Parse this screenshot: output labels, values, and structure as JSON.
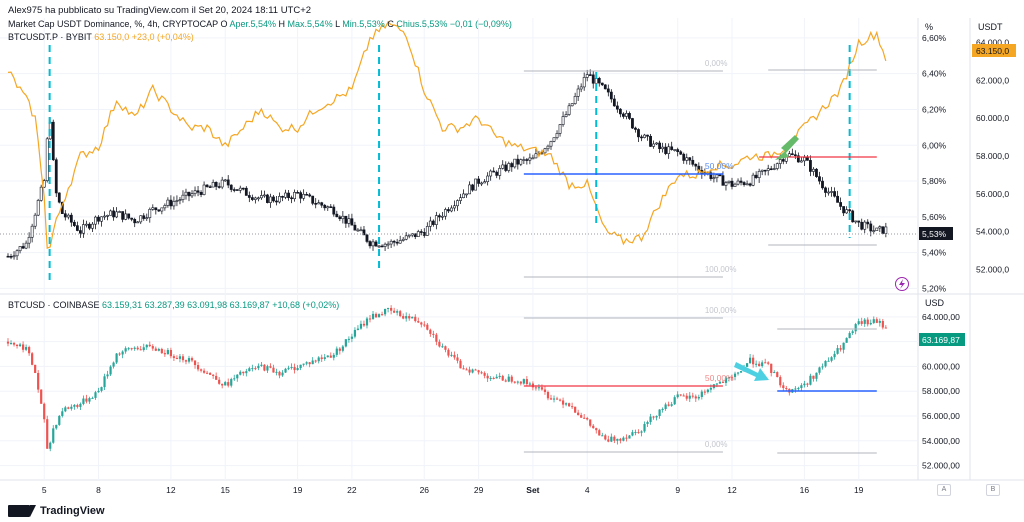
{
  "publisher": "Alex975 ha pubblicato su TradingView.com il Set 20, 2024 18:11 UTC+2",
  "brand": "TradingView",
  "colors": {
    "dominance_line": "#f5a623",
    "up_candle": "#26a69a",
    "down_candle": "#ef5350",
    "dom_candle_up": "#ffffff",
    "dom_candle_down": "#131722",
    "grid": "#f0f3fa",
    "fib": "#b2b5be",
    "blue_line": "#2962ff",
    "red_line": "#f23645",
    "cyan_dash": "#00bcd4",
    "arrow_green": "#66bb6a",
    "arrow_cyan": "#4dd0e1"
  },
  "top_panel": {
    "title": "Market Cap USDT Dominance, %, 4h, CRYPTOCAP",
    "ohlc": {
      "o_label": "O",
      "o": "Aper.5,54%",
      "h_label": "H",
      "h": "Max.5,54%",
      "l_label": "L",
      "l": "Min.5,53%",
      "c_label": "C",
      "c": "Chius.5,53%",
      "chg": "−0,01 (−0,09%)"
    },
    "series2_name": "BTCUSDT.P · BYBIT",
    "series2_value": "63.150,0",
    "series2_change": "+23,0 (+0,04%)",
    "left_axis_unit": "%",
    "right_axis_unit": "USDT",
    "current_label": "5,53%",
    "orange_label": "63.150,0",
    "fib_labels": [
      "0,00%",
      "50,00%",
      "100,00%"
    ]
  },
  "bottom_panel": {
    "title": "BTCUSD · COINBASE",
    "ohlc": "63.159,31  63.287,39  63.091,98  63.169,87  +10,68 (+0,02%)",
    "axis_unit": "USD",
    "current_label": "63.169,87",
    "fib_labels": [
      "100,00%",
      "50,00%",
      "0,00%"
    ]
  },
  "x_axis": {
    "labels": [
      "5",
      "8",
      "12",
      "15",
      "19",
      "22",
      "26",
      "29",
      "Set",
      "4",
      "9",
      "12",
      "16",
      "19"
    ],
    "buttons": [
      "A",
      "B"
    ]
  },
  "chart_data": [
    {
      "type": "line",
      "title": "Market Cap USDT Dominance, %, 4h, CRYPTOCAP",
      "note": "candles + BTCUSDT.P overlay",
      "ylim_left": [
        5.2,
        6.7
      ],
      "yticks_left": [
        "6,60%",
        "6,40%",
        "6,20%",
        "6,00%",
        "5,80%",
        "5,60%",
        "5,40%",
        "5,20%"
      ],
      "yticks_left_values": [
        6.6,
        6.4,
        6.2,
        6.0,
        5.8,
        5.6,
        5.4,
        5.2
      ],
      "ylim_right": [
        51000,
        65000
      ],
      "yticks_right": [
        "64.000,0",
        "62.000,0",
        "60.000,0",
        "58.000,0",
        "56.000,0",
        "54.000,0",
        "52.000,0"
      ],
      "yticks_right_values": [
        64000,
        62000,
        60000,
        58000,
        56000,
        54000,
        52000
      ],
      "x_days": [
        3,
        5,
        8,
        12,
        15,
        19,
        22,
        26,
        29,
        32,
        35,
        40,
        43,
        47,
        50,
        52
      ],
      "dominance_path": [
        [
          3,
          5.38
        ],
        [
          4,
          5.45
        ],
        [
          5,
          5.8
        ],
        [
          5.3,
          6.2
        ],
        [
          5.6,
          5.75
        ],
        [
          6,
          5.62
        ],
        [
          7,
          5.52
        ],
        [
          8,
          5.6
        ],
        [
          9,
          5.62
        ],
        [
          10,
          5.58
        ],
        [
          11,
          5.64
        ],
        [
          12,
          5.68
        ],
        [
          13,
          5.72
        ],
        [
          14,
          5.76
        ],
        [
          15,
          5.79
        ],
        [
          16,
          5.74
        ],
        [
          17,
          5.7
        ],
        [
          18,
          5.7
        ],
        [
          19,
          5.73
        ],
        [
          20,
          5.68
        ],
        [
          21,
          5.64
        ],
        [
          22,
          5.55
        ],
        [
          23,
          5.46
        ],
        [
          24,
          5.45
        ],
        [
          25,
          5.48
        ],
        [
          26,
          5.52
        ],
        [
          27,
          5.62
        ],
        [
          28,
          5.72
        ],
        [
          29,
          5.8
        ],
        [
          30,
          5.85
        ],
        [
          31,
          5.9
        ],
        [
          32,
          5.92
        ],
        [
          33,
          6.03
        ],
        [
          34,
          6.2
        ],
        [
          35,
          6.4
        ],
        [
          36,
          6.3
        ],
        [
          37,
          6.18
        ],
        [
          38,
          6.05
        ],
        [
          39,
          5.98
        ],
        [
          40,
          5.96
        ],
        [
          41,
          5.88
        ],
        [
          42,
          5.82
        ],
        [
          43,
          5.78
        ],
        [
          44,
          5.8
        ],
        [
          45,
          5.86
        ],
        [
          46,
          5.95
        ],
        [
          47,
          5.92
        ],
        [
          48,
          5.78
        ],
        [
          49,
          5.66
        ],
        [
          50,
          5.56
        ],
        [
          51,
          5.52
        ],
        [
          51.5,
          5.53
        ]
      ],
      "btcusdt_path": [
        [
          3,
          62500
        ],
        [
          4,
          61000
        ],
        [
          4.5,
          60000
        ],
        [
          5,
          56000
        ],
        [
          5.2,
          52500
        ],
        [
          5.5,
          54000
        ],
        [
          6,
          55500
        ],
        [
          7,
          58000
        ],
        [
          8,
          58500
        ],
        [
          9,
          61000
        ],
        [
          10,
          60000
        ],
        [
          11,
          61500
        ],
        [
          12,
          60500
        ],
        [
          13,
          59500
        ],
        [
          14,
          59500
        ],
        [
          15,
          58500
        ],
        [
          16,
          59500
        ],
        [
          17,
          60500
        ],
        [
          18,
          59500
        ],
        [
          19,
          59500
        ],
        [
          20,
          60500
        ],
        [
          21,
          61000
        ],
        [
          22,
          61500
        ],
        [
          23,
          64200
        ],
        [
          24,
          65000
        ],
        [
          25,
          64500
        ],
        [
          26,
          61500
        ],
        [
          27,
          59500
        ],
        [
          28,
          59500
        ],
        [
          29,
          60000
        ],
        [
          30,
          59000
        ],
        [
          31,
          58500
        ],
        [
          32,
          58300
        ],
        [
          33,
          58000
        ],
        [
          34,
          56500
        ],
        [
          35,
          56500
        ],
        [
          36,
          54000
        ],
        [
          37,
          53500
        ],
        [
          38,
          53700
        ],
        [
          39,
          55500
        ],
        [
          40,
          57000
        ],
        [
          41,
          57000
        ],
        [
          42,
          57500
        ],
        [
          43,
          57500
        ],
        [
          44,
          58000
        ],
        [
          45,
          58000
        ],
        [
          46,
          58500
        ],
        [
          47,
          59500
        ],
        [
          48,
          60500
        ],
        [
          49,
          61500
        ],
        [
          50,
          64000
        ],
        [
          51,
          64500
        ],
        [
          51.5,
          63150
        ]
      ]
    },
    {
      "type": "line",
      "title": "BTCUSD · COINBASE",
      "note": "candlestick price",
      "ylim": [
        51000,
        65500
      ],
      "yticks": [
        "64.000,00",
        "62.000,00",
        "60.000,00",
        "58.000,00",
        "56.000,00",
        "54.000,00",
        "52.000,00"
      ],
      "yticks_values": [
        64000,
        62000,
        60000,
        58000,
        56000,
        54000,
        52000
      ],
      "price_path": [
        [
          3,
          62000
        ],
        [
          4,
          61500
        ],
        [
          4.5,
          59500
        ],
        [
          5,
          55500
        ],
        [
          5.2,
          53000
        ],
        [
          5.5,
          55000
        ],
        [
          6,
          56500
        ],
        [
          7,
          57000
        ],
        [
          8,
          58000
        ],
        [
          9,
          61000
        ],
        [
          10,
          61500
        ],
        [
          11,
          61500
        ],
        [
          12,
          61000
        ],
        [
          13,
          60500
        ],
        [
          14,
          59500
        ],
        [
          15,
          58500
        ],
        [
          16,
          59500
        ],
        [
          17,
          60000
        ],
        [
          18,
          59500
        ],
        [
          19,
          60000
        ],
        [
          20,
          60500
        ],
        [
          21,
          61000
        ],
        [
          22,
          62500
        ],
        [
          23,
          64000
        ],
        [
          24,
          64500
        ],
        [
          25,
          64000
        ],
        [
          26,
          63500
        ],
        [
          27,
          61500
        ],
        [
          28,
          60000
        ],
        [
          29,
          59500
        ],
        [
          30,
          59000
        ],
        [
          31,
          59000
        ],
        [
          32,
          58500
        ],
        [
          33,
          57500
        ],
        [
          34,
          57000
        ],
        [
          35,
          55500
        ],
        [
          36,
          54000
        ],
        [
          37,
          54300
        ],
        [
          38,
          55000
        ],
        [
          39,
          56500
        ],
        [
          40,
          57500
        ],
        [
          41,
          57500
        ],
        [
          42,
          58500
        ],
        [
          43,
          59000
        ],
        [
          44,
          60500
        ],
        [
          45,
          60000
        ],
        [
          46,
          58000
        ],
        [
          47,
          58500
        ],
        [
          48,
          60000
        ],
        [
          49,
          61500
        ],
        [
          50,
          63500
        ],
        [
          51,
          63600
        ],
        [
          51.5,
          63170
        ]
      ]
    }
  ]
}
